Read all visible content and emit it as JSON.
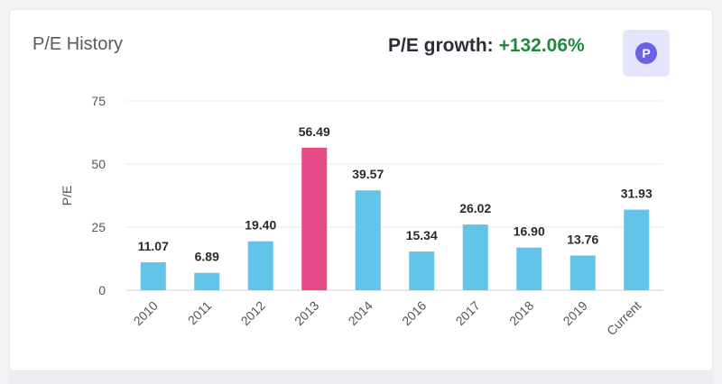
{
  "header": {
    "title": "P/E History",
    "growth_label": "P/E growth:",
    "growth_value": "+132.06%",
    "badge_letter": "P"
  },
  "colors": {
    "bar": "#62c4e8",
    "highlight": "#e84a87",
    "growth_positive": "#1e8a3c"
  },
  "chart_data": {
    "type": "bar",
    "ylabel": "P/E",
    "xlabel": "",
    "ylim": [
      0,
      75
    ],
    "yticks": [
      0,
      25,
      50,
      75
    ],
    "grid": true,
    "categories": [
      "2010",
      "2011",
      "2012",
      "2013",
      "2014",
      "2016",
      "2017",
      "2018",
      "2019",
      "Current"
    ],
    "values": [
      11.07,
      6.89,
      19.4,
      56.49,
      39.57,
      15.34,
      26.02,
      16.9,
      13.76,
      31.93
    ],
    "value_labels": [
      "11.07",
      "6.89",
      "19.40",
      "56.49",
      "39.57",
      "15.34",
      "26.02",
      "16.90",
      "13.76",
      "31.93"
    ],
    "highlight_category": "2013"
  }
}
